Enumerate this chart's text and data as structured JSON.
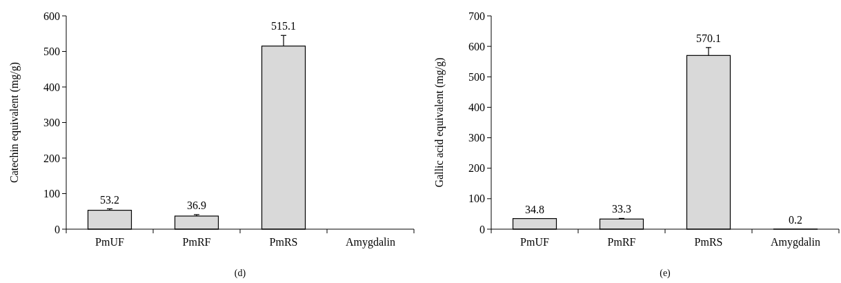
{
  "chart_data": [
    {
      "type": "bar",
      "categories": [
        "PmUF",
        "PmRF",
        "PmRS",
        "Amygdalin"
      ],
      "values": [
        53.2,
        36.9,
        515.1,
        null
      ],
      "value_labels": [
        "53.2",
        "36.9",
        "515.1",
        null
      ],
      "errors": [
        4,
        4,
        30,
        null
      ],
      "color": "#d9d9d9",
      "ylabel": "Catechin equivalent (mg/g)",
      "ylim": [
        0,
        600
      ],
      "yticks": [
        0,
        100,
        200,
        300,
        400,
        500,
        600
      ],
      "annotations": [
        "(d)"
      ]
    },
    {
      "type": "bar",
      "categories": [
        "PmUF",
        "PmRF",
        "PmRS",
        "Amygdalin"
      ],
      "values": [
        34.8,
        33.3,
        570.1,
        0.2
      ],
      "value_labels": [
        "34.8",
        "33.3",
        "570.1",
        "0.2"
      ],
      "errors": [
        null,
        2,
        26,
        null
      ],
      "color": "#d9d9d9",
      "ylabel": "Gallic acid equivalent (mg/g)",
      "ylim": [
        0,
        700
      ],
      "yticks": [
        0,
        100,
        200,
        300,
        400,
        500,
        600,
        700
      ],
      "annotations": [
        "(e)"
      ]
    }
  ]
}
